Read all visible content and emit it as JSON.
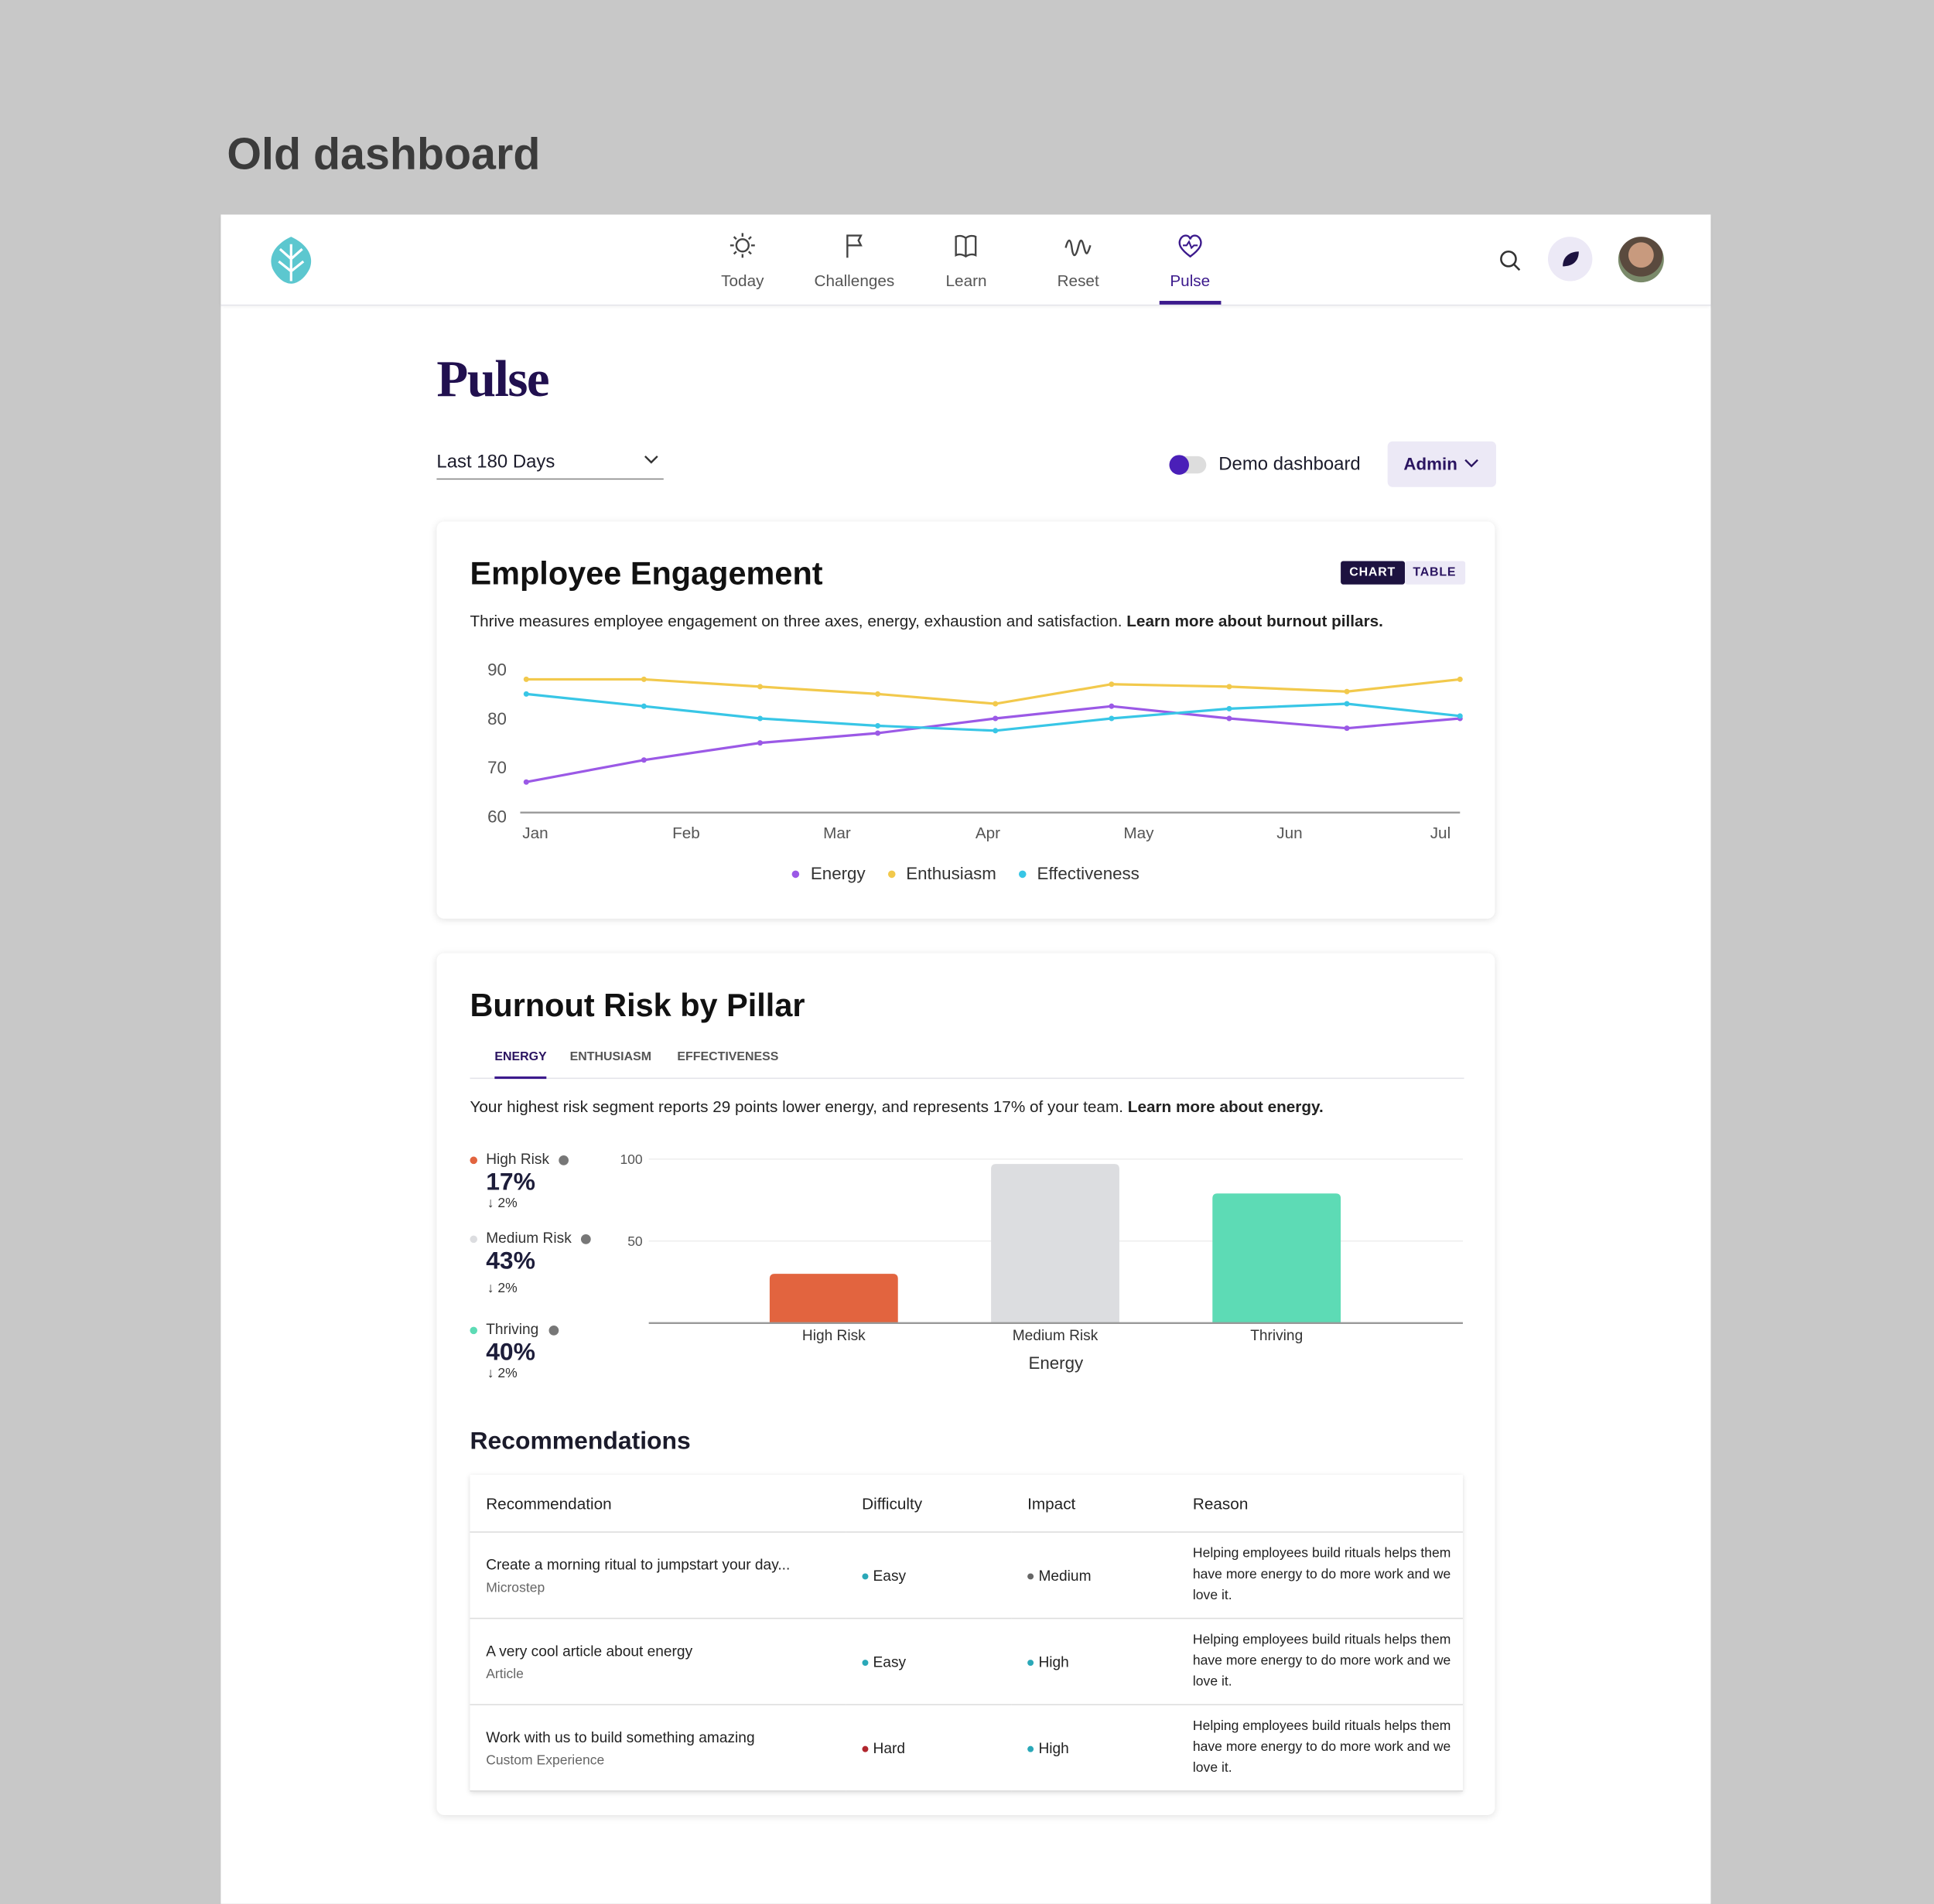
{
  "heading": "Old dashboard",
  "nav": {
    "items": [
      "Today",
      "Challenges",
      "Learn",
      "Reset",
      "Pulse"
    ],
    "active": 4
  },
  "page": {
    "title": "Pulse",
    "range": "Last 180 Days",
    "demo_toggle": "Demo dashboard",
    "role": "Admin"
  },
  "chart_data": [
    {
      "type": "line",
      "title": "Employee Engagement",
      "view_tabs": [
        "CHART",
        "TABLE"
      ],
      "description": "Thrive measures employee engagement on three axes, energy, exhaustion and satisfaction.",
      "link": "Learn more about burnout pillars.",
      "x": [
        -0.06,
        0.72,
        1.49,
        2.27,
        3.05,
        3.82,
        4.6,
        5.38,
        6.13
      ],
      "xlim": [
        -0.1,
        6.13
      ],
      "xticks": [
        {
          "value": 0,
          "label": "Jan"
        },
        {
          "value": 1,
          "label": "Feb"
        },
        {
          "value": 2,
          "label": "Mar"
        },
        {
          "value": 3,
          "label": "Apr"
        },
        {
          "value": 4,
          "label": "May"
        },
        {
          "value": 5,
          "label": "Jun"
        },
        {
          "value": 6,
          "label": "Jul"
        }
      ],
      "ylim": [
        60,
        90
      ],
      "yticks": [
        60,
        70,
        80,
        90
      ],
      "series": [
        {
          "name": "Energy",
          "color": "#9b59e6",
          "values": [
            67,
            71.5,
            75,
            77,
            80,
            82.5,
            80,
            78,
            80
          ]
        },
        {
          "name": "Enthusiasm",
          "color": "#f2c94c",
          "values": [
            88,
            88,
            86.5,
            85,
            83,
            87,
            86.5,
            85.5,
            88
          ]
        },
        {
          "name": "Effectiveness",
          "color": "#38c6e6",
          "values": [
            85,
            82.5,
            80,
            78.5,
            77.5,
            80,
            82,
            83,
            80.5
          ]
        }
      ]
    },
    {
      "type": "bar",
      "title": "Burnout Risk by Pillar",
      "tabs": [
        "ENERGY",
        "ENTHUSIASM",
        "EFFECTIVENESS"
      ],
      "description": "Your highest risk segment reports 29 points lower energy, and represents 17% of your team.",
      "link": "Learn more about energy.",
      "categories": [
        "High Risk",
        "Medium Risk",
        "Thriving"
      ],
      "values": [
        30,
        97,
        79
      ],
      "colors": [
        "#e2643f",
        "#dcdde0",
        "#5ddbb5"
      ],
      "xlabel": "Energy",
      "ylim": [
        0,
        100
      ],
      "yticks": [
        50,
        100
      ],
      "grid": true,
      "summary": [
        {
          "label": "High Risk",
          "color": "#e2643f",
          "value": "17%",
          "change": "↓ 2%"
        },
        {
          "label": "Medium Risk",
          "color": "#dcdde0",
          "value": "43%",
          "change": "↓ 2%"
        },
        {
          "label": "Thriving",
          "color": "#5ddbb5",
          "value": "40%",
          "change": "↓ 2%"
        }
      ]
    }
  ],
  "recommendations": {
    "title": "Recommendations",
    "columns": [
      "Recommendation",
      "Difficulty",
      "Impact",
      "Reason"
    ],
    "rows": [
      {
        "title": "Create a morning ritual to jumpstart your day...",
        "type": "Microstep",
        "difficulty": "Easy",
        "difficulty_color": "#2aa8b8",
        "impact": "Medium",
        "impact_color": "#666666",
        "reason": "Helping employees build rituals helps them have more energy to do more work and we love it."
      },
      {
        "title": "A very cool article about energy",
        "type": "Article",
        "difficulty": "Easy",
        "difficulty_color": "#2aa8b8",
        "impact": "High",
        "impact_color": "#2aa8b8",
        "reason": "Helping employees build rituals helps them have more energy to do more work and we love it."
      },
      {
        "title": "Work with us to build something amazing",
        "type": "Custom Experience",
        "difficulty": "Hard",
        "difficulty_color": "#b0262e",
        "impact": "High",
        "impact_color": "#2aa8b8",
        "reason": "Helping employees build rituals helps them have more energy to do more work and we love it."
      }
    ]
  }
}
